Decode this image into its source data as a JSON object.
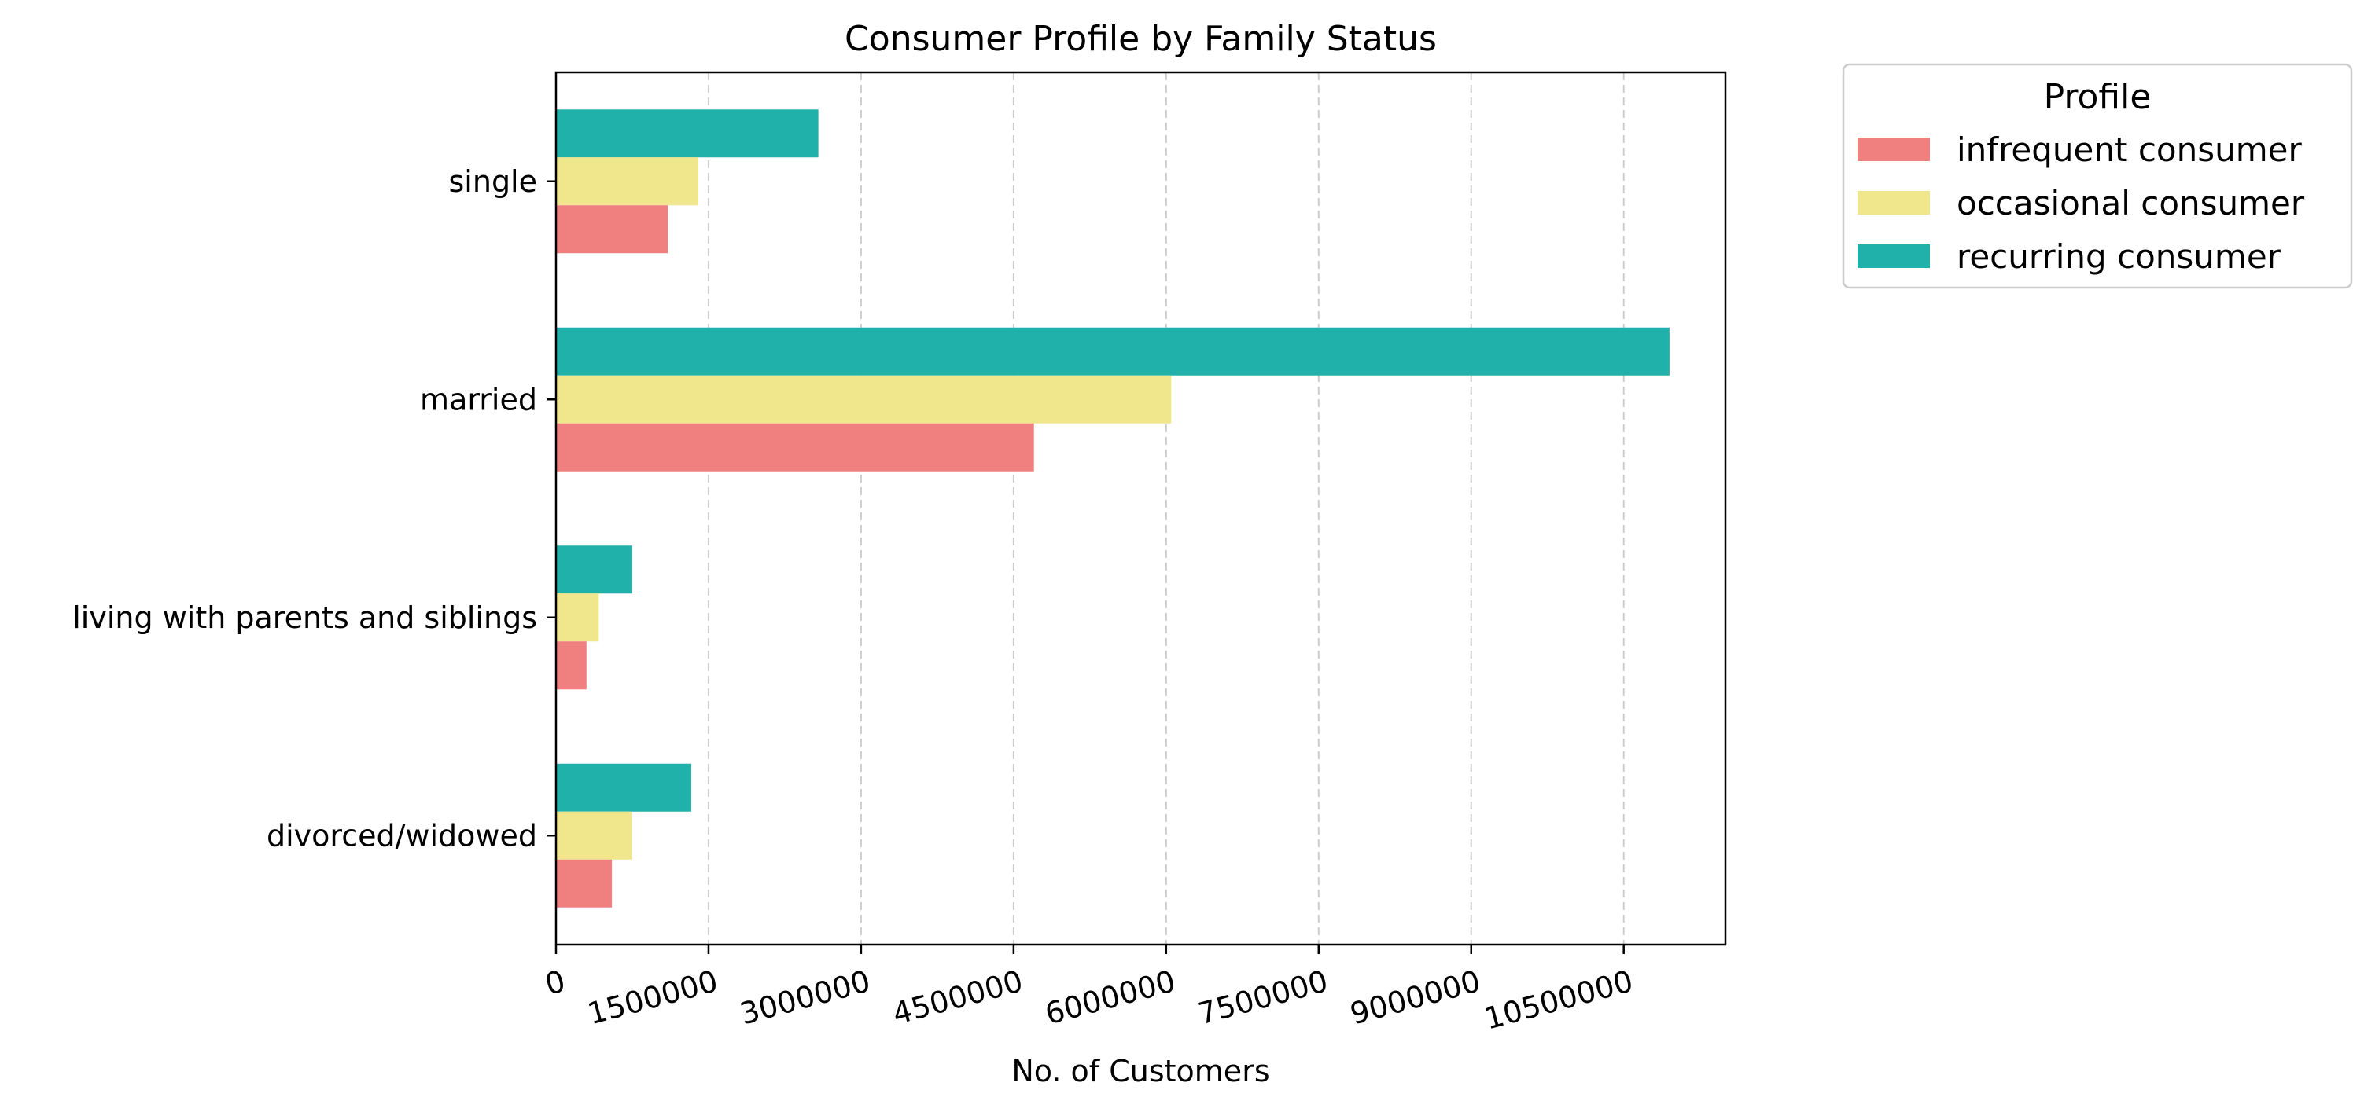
{
  "chart_data": {
    "type": "bar",
    "orientation": "horizontal",
    "title": "Consumer Profile by Family Status",
    "xlabel": "No. of Customers",
    "ylabel": "",
    "categories": [
      "single",
      "married",
      "living with parents and siblings",
      "divorced/widowed"
    ],
    "series": [
      {
        "name": "infrequent consumer",
        "color": "#f08080",
        "values": [
          1100000,
          4700000,
          300000,
          550000
        ]
      },
      {
        "name": "occasional consumer",
        "color": "#f0e68c",
        "values": [
          1400000,
          6050000,
          420000,
          750000
        ]
      },
      {
        "name": "recurring consumer",
        "color": "#20b2aa",
        "values": [
          2580000,
          10950000,
          750000,
          1330000
        ]
      }
    ],
    "xlim": [
      0,
      11500000
    ],
    "xticks": [
      0,
      1500000,
      3000000,
      4500000,
      6000000,
      7500000,
      9000000,
      10500000
    ],
    "xtick_labels": [
      "0",
      "1500000",
      "3000000",
      "4500000",
      "6000000",
      "7500000",
      "9000000",
      "10500000"
    ],
    "xtick_rotation": "15 degrees",
    "grid": "x-axis dashed",
    "legend": {
      "title": "Profile",
      "placement": "outside upper-right"
    }
  }
}
